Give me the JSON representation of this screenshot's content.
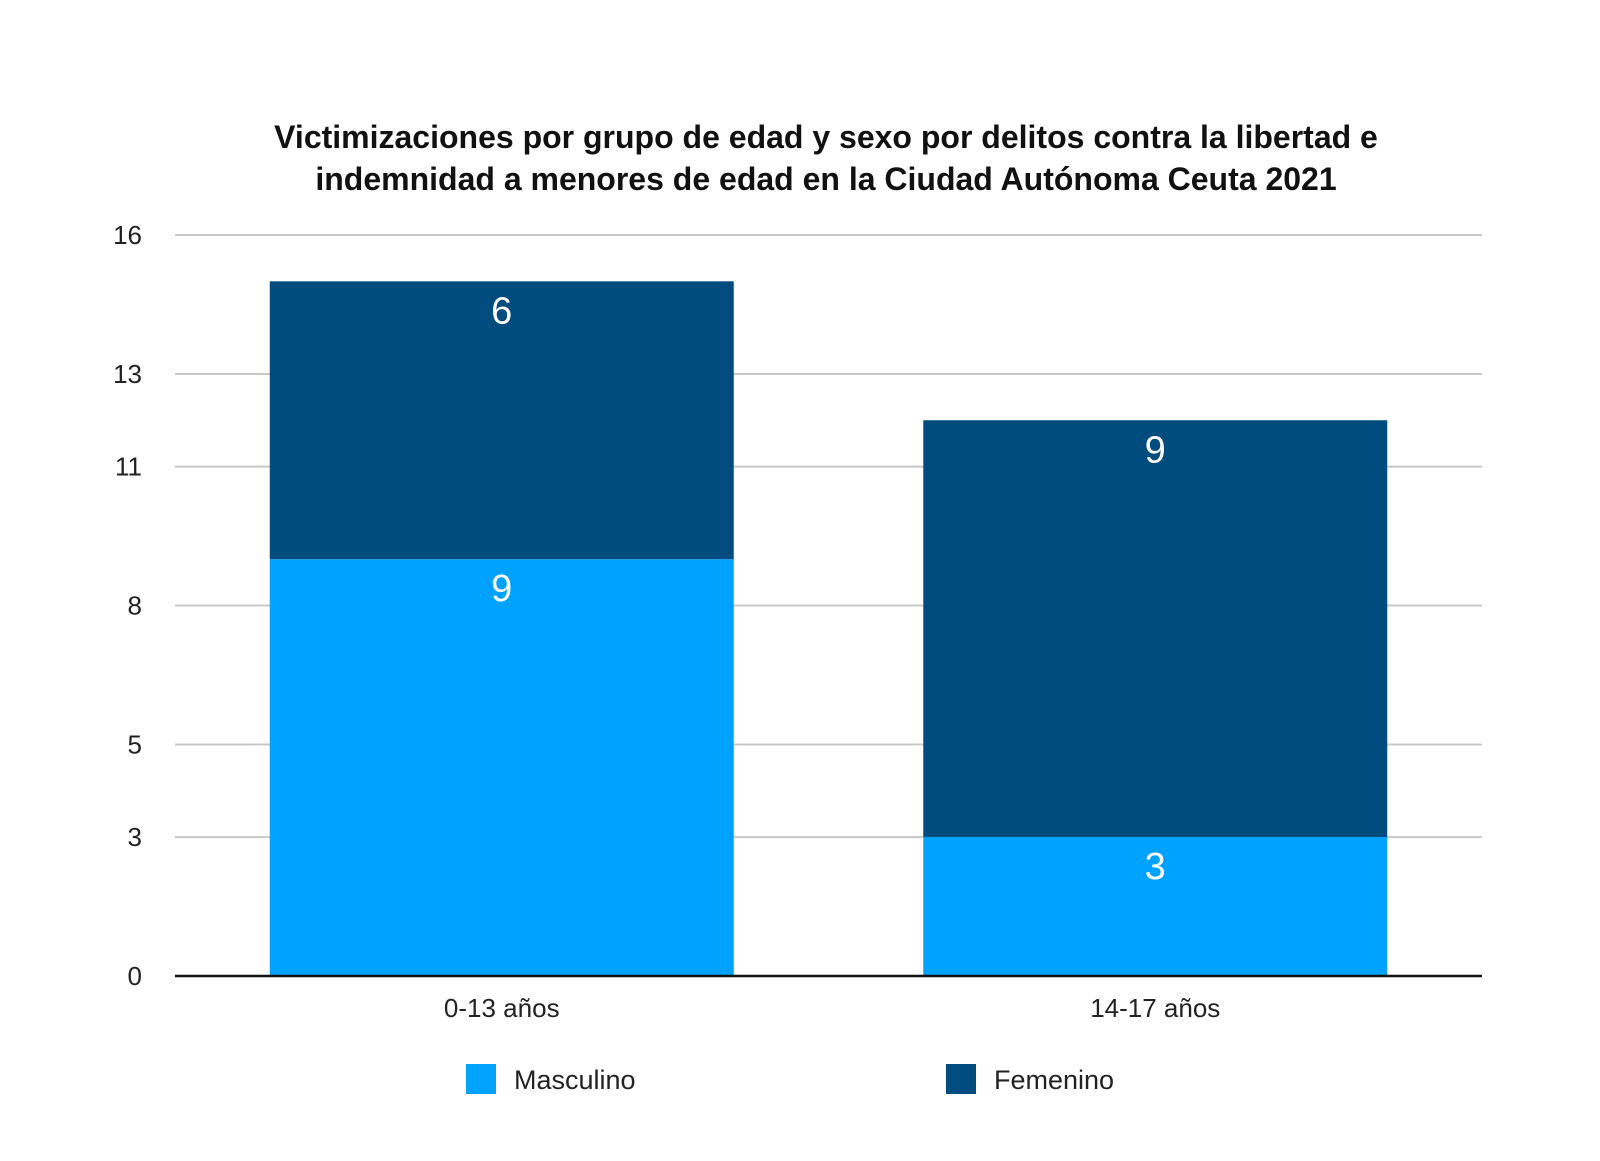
{
  "chart_data": {
    "type": "bar",
    "stacked": true,
    "title": "Victimizaciones por grupo de edad y sexo por delitos contra la libertad e indemnidad a menores de edad en la Ciudad Autónoma Ceuta 2021",
    "title_lines": [
      "Victimizaciones por grupo de edad y sexo por delitos contra la libertad e",
      "indemnidad a menores de edad en la Ciudad Autónoma Ceuta 2021"
    ],
    "categories": [
      "0-13 años",
      "14-17 años"
    ],
    "series": [
      {
        "name": "Masculino",
        "values": [
          9,
          3
        ],
        "color": "#00a2ff"
      },
      {
        "name": "Femenino",
        "values": [
          6,
          9
        ],
        "color": "#004c7f"
      }
    ],
    "xlabel": "",
    "ylabel": "",
    "ylim": [
      0,
      16
    ],
    "yticks": [
      0,
      3,
      5,
      8,
      11,
      13,
      16
    ],
    "ytick_labels": [
      "0",
      "3",
      "5",
      "8",
      "11",
      "13",
      "16"
    ],
    "grid": true,
    "legend_position": "bottom"
  }
}
